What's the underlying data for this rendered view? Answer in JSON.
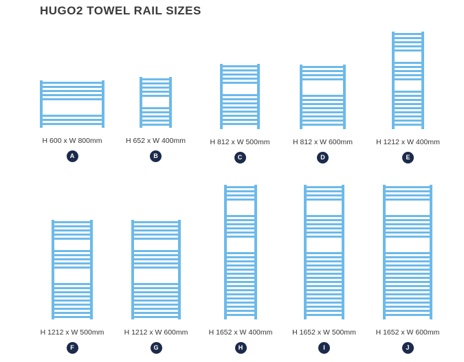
{
  "title": "HUGO2 TOWEL RAIL SIZES",
  "rail_color": "#6cbaea",
  "badge_color": "#1c2b4b",
  "rails": [
    {
      "letter": "A",
      "label": "H 600 x W 800mm",
      "height_mm": 600,
      "width_mm": 800
    },
    {
      "letter": "B",
      "label": "H 652 x W 400mm",
      "height_mm": 652,
      "width_mm": 400
    },
    {
      "letter": "C",
      "label": "H 812 x W 500mm",
      "height_mm": 812,
      "width_mm": 500
    },
    {
      "letter": "D",
      "label": "H 812 x W 600mm",
      "height_mm": 812,
      "width_mm": 600
    },
    {
      "letter": "E",
      "label": "H 1212 x W 400mm",
      "height_mm": 1212,
      "width_mm": 400
    },
    {
      "letter": "F",
      "label": "H 1212 x W 500mm",
      "height_mm": 1212,
      "width_mm": 500
    },
    {
      "letter": "G",
      "label": "H 1212 x W 600mm",
      "height_mm": 1212,
      "width_mm": 600
    },
    {
      "letter": "H",
      "label": "H 1652 x W 400mm",
      "height_mm": 1652,
      "width_mm": 400
    },
    {
      "letter": "I",
      "label": "H 1652 x W 500mm",
      "height_mm": 1652,
      "width_mm": 500
    },
    {
      "letter": "J",
      "label": "H 1652 x W 600mm",
      "height_mm": 1652,
      "width_mm": 600
    }
  ]
}
